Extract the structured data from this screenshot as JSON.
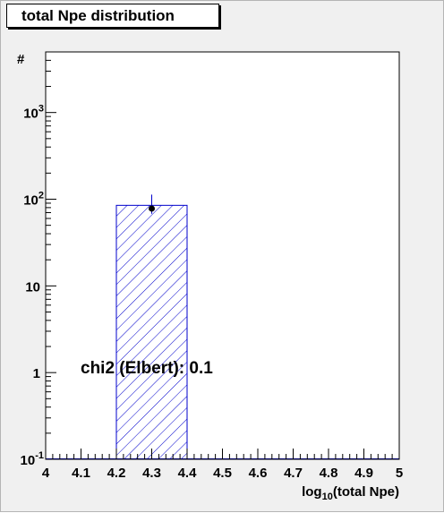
{
  "chart_data": {
    "type": "bar",
    "title": "total Npe distribution",
    "xlabel": {
      "base": "log",
      "subscript": "10",
      "rest": "(total Npe)"
    },
    "ylabel": "#",
    "xlim": [
      4,
      5
    ],
    "ylim": [
      0.1,
      5000
    ],
    "y_scale": "log",
    "x_ticks": [
      "4",
      "4.1",
      "4.2",
      "4.3",
      "4.4",
      "4.5",
      "4.6",
      "4.7",
      "4.8",
      "4.9",
      "5"
    ],
    "y_ticks": [
      {
        "value": 0.1,
        "base": "10",
        "sup": "-1"
      },
      {
        "value": 1,
        "base": "1",
        "sup": ""
      },
      {
        "value": 10,
        "base": "10",
        "sup": ""
      },
      {
        "value": 100,
        "base": "10",
        "sup": "2"
      },
      {
        "value": 1000,
        "base": "10",
        "sup": "3"
      }
    ],
    "histogram": {
      "style": "hatched",
      "color": "#0000cc",
      "bins": [
        {
          "x_low": 4.2,
          "x_high": 4.4,
          "value": 85
        }
      ]
    },
    "data_point": {
      "x": 4.3,
      "y": 78,
      "y_err_low": 10,
      "y_err_high": 35
    },
    "annotation": "chi2 (Elbert): 0.1",
    "grid": false
  }
}
